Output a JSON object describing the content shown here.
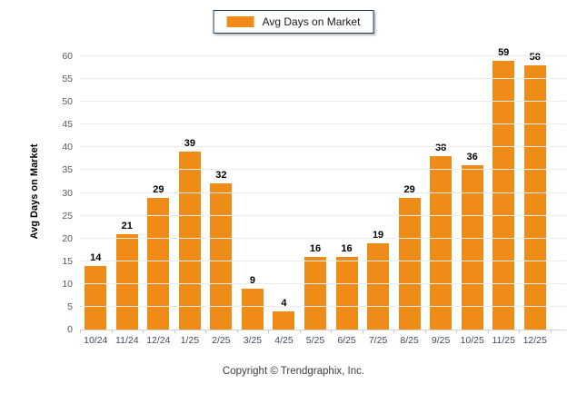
{
  "chart_data": {
    "type": "bar",
    "legend_label": "Avg Days on Market",
    "ylabel": "Avg Days on Market",
    "categories": [
      "10/24",
      "11/24",
      "12/24",
      "1/25",
      "2/25",
      "3/25",
      "4/25",
      "5/25",
      "6/25",
      "7/25",
      "8/25",
      "9/25",
      "10/25",
      "11/25",
      "12/25"
    ],
    "values": [
      14,
      21,
      29,
      39,
      32,
      9,
      4,
      16,
      16,
      19,
      29,
      38,
      36,
      59,
      58
    ],
    "ylim": [
      0,
      60
    ],
    "y_ticks": [
      0,
      5,
      10,
      15,
      20,
      25,
      30,
      35,
      40,
      45,
      50,
      55,
      60
    ],
    "grid": true,
    "value_labels": true,
    "legend_position": "top-center",
    "bar_color": "#ee8c17",
    "gridline_color": "#ececec"
  },
  "footer": {
    "copyright": "Copyright © Trendgraphix, Inc."
  }
}
